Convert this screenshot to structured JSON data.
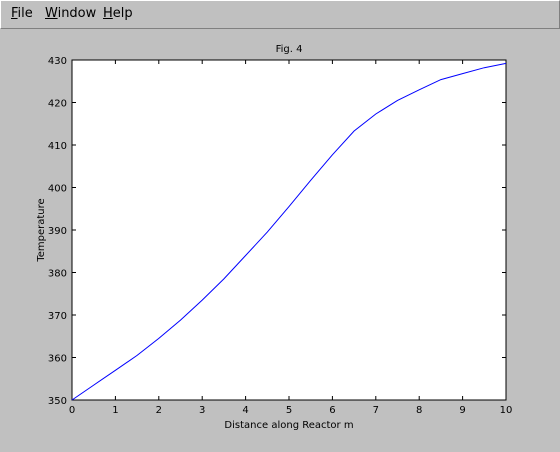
{
  "menubar": {
    "items": [
      {
        "mnemonic": "F",
        "rest": "ile"
      },
      {
        "mnemonic": "W",
        "rest": "indow"
      },
      {
        "mnemonic": "H",
        "rest": "elp"
      }
    ]
  },
  "chart_data": {
    "type": "line",
    "title": "Fig. 4",
    "xlabel": "Distance along Reactor m",
    "ylabel": "Temperature",
    "xlim": [
      0,
      10
    ],
    "ylim": [
      350,
      430
    ],
    "xticks": [
      0,
      1,
      2,
      3,
      4,
      5,
      6,
      7,
      8,
      9,
      10
    ],
    "yticks": [
      350,
      360,
      370,
      380,
      390,
      400,
      410,
      420,
      430
    ],
    "grid": false,
    "series": [
      {
        "color": "#0000ff",
        "x": [
          0,
          0.5,
          1.0,
          1.5,
          2.0,
          2.5,
          3.0,
          3.5,
          4.0,
          4.5,
          5.0,
          5.5,
          6.0,
          6.5,
          7.0,
          7.5,
          8.0,
          8.5,
          9.0,
          9.5,
          10.0
        ],
        "y": [
          350,
          353.5,
          357,
          360.5,
          364.5,
          368.8,
          373.5,
          378.5,
          384,
          389.5,
          395.5,
          401.7,
          407.7,
          413.3,
          417.3,
          420.5,
          423,
          425.4,
          426.8,
          428.2,
          429.2
        ]
      }
    ]
  }
}
